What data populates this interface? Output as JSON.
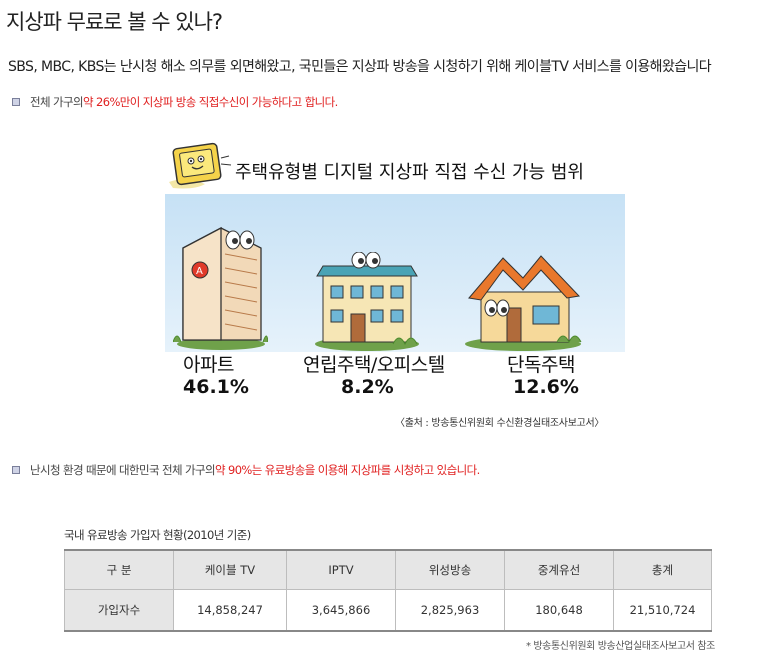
{
  "title": "지상파 무료로 볼 수 있나?",
  "subtitle": "SBS, MBC, KBS는 난시청 해소 의무를 외면해왔고, 국민들은 지상파 방송을 시청하기 위해 케이블TV 서비스를 이용해왔습니다",
  "bullet1": {
    "prefix": "전체 가구의 ",
    "highlight": "약 26%만이 지상파 방송 직접수신이 가능하다고 합니다."
  },
  "infographic": {
    "title": "주택유형별 디지털 지상파 직접 수신 가능 범위",
    "items": [
      {
        "label": "아파트",
        "value": "46.1%"
      },
      {
        "label": "연립주택/오피스텔",
        "value": "8.2%"
      },
      {
        "label": "단독주택",
        "value": "12.6%"
      }
    ],
    "source": "〈출처 : 방송통신위원회 수신환경실태조사보고서〉"
  },
  "bullet2": {
    "prefix": "난시청 환경 때문에 대한민국 전체 가구의 ",
    "highlight": "약 90%는 유료방송을 이용해 지상파를 시청하고 있습니다."
  },
  "table": {
    "caption": "국내 유료방송 가입자 현황(2010년 기준)",
    "headers": [
      "구 분",
      "케이블 TV",
      "IPTV",
      "위성방송",
      "중계유선",
      "총계"
    ],
    "row": [
      "가입자수",
      "14,858,247",
      "3,645,866",
      "2,825,963",
      "180,648",
      "21,510,724"
    ],
    "source": "* 방송통신위원회 방송산업실태조사보고서 참조"
  },
  "colors": {
    "highlight": "#e02020",
    "sky": "#c6e1f5",
    "bullet": "#cfd3e6"
  }
}
